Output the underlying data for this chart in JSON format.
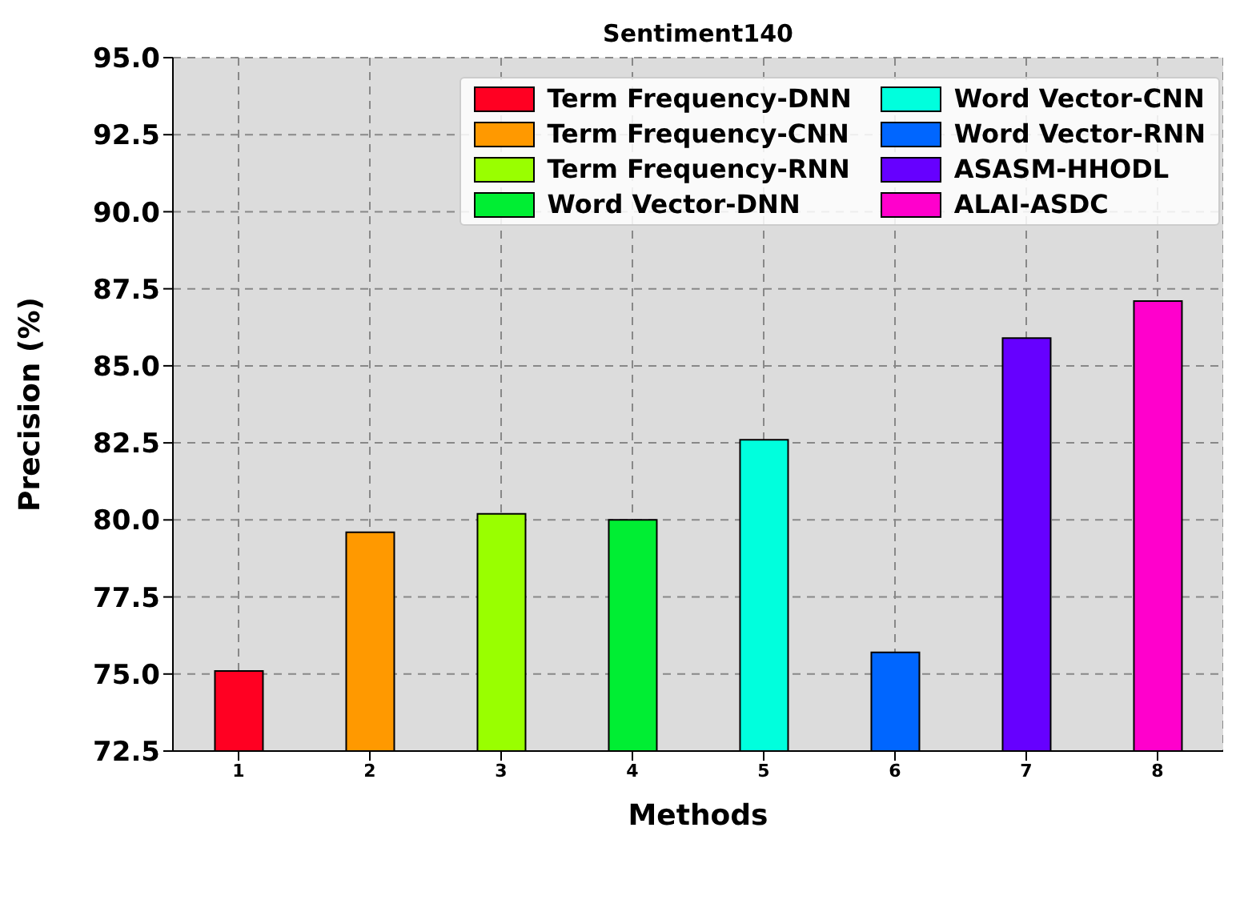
{
  "chart_data": {
    "type": "bar",
    "title": "Sentiment140",
    "xlabel": "Methods",
    "ylabel": "Precision (%)",
    "categories": [
      "1",
      "2",
      "3",
      "4",
      "5",
      "6",
      "7",
      "8"
    ],
    "series": [
      {
        "name": "Term Frequency-DNN",
        "color": "#ff0022",
        "values": [
          75.1,
          null,
          null,
          null,
          null,
          null,
          null,
          null
        ]
      },
      {
        "name": "Term Frequency-CNN",
        "color": "#ff9900",
        "values": [
          null,
          79.6,
          null,
          null,
          null,
          null,
          null,
          null
        ]
      },
      {
        "name": "Term Frequency-RNN",
        "color": "#99ff00",
        "values": [
          null,
          null,
          80.2,
          null,
          null,
          null,
          null,
          null
        ]
      },
      {
        "name": "Word Vector-DNN",
        "color": "#00ee33",
        "values": [
          null,
          null,
          null,
          80.0,
          null,
          null,
          null,
          null
        ]
      },
      {
        "name": "Word Vector-CNN",
        "color": "#00ffdd",
        "values": [
          null,
          null,
          null,
          null,
          82.6,
          null,
          null,
          null
        ]
      },
      {
        "name": "Word Vector-RNN",
        "color": "#0066ff",
        "values": [
          null,
          null,
          null,
          null,
          null,
          75.7,
          null,
          null
        ]
      },
      {
        "name": "ASASM-HHODL",
        "color": "#6600ff",
        "values": [
          null,
          null,
          null,
          null,
          null,
          null,
          85.9,
          null
        ]
      },
      {
        "name": "ALAI-ASDC",
        "color": "#ff00cc",
        "values": [
          null,
          null,
          null,
          null,
          null,
          null,
          null,
          87.1
        ]
      }
    ],
    "ylim": [
      72.5,
      95.0
    ],
    "yticks": [
      {
        "value": 72.5,
        "label": "72.5"
      },
      {
        "value": 75,
        "label": "75.0"
      },
      {
        "value": 77.5,
        "label": "77.5"
      },
      {
        "value": 80,
        "label": "80.0"
      },
      {
        "value": 82.5,
        "label": "82.5"
      },
      {
        "value": 85,
        "label": "85.0"
      },
      {
        "value": 87.5,
        "label": "87.5"
      },
      {
        "value": 90,
        "label": "90.0"
      },
      {
        "value": 92.5,
        "label": "92.5"
      },
      {
        "value": 95,
        "label": "95.0"
      }
    ],
    "grid": true,
    "legend": "top right"
  }
}
